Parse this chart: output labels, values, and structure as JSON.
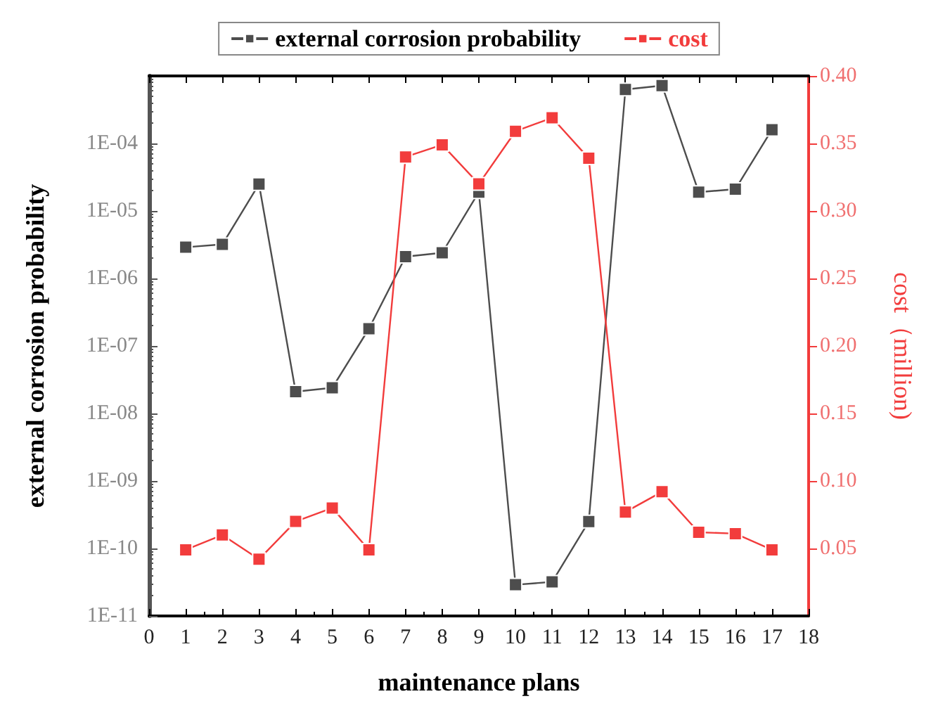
{
  "chart_data": {
    "type": "line",
    "xlabel": "maintenance plans",
    "ylabel": "external corrosion probability",
    "y2label": "cost（million)",
    "x": [
      1,
      2,
      3,
      4,
      5,
      6,
      7,
      8,
      9,
      10,
      11,
      12,
      13,
      14,
      15,
      16,
      17
    ],
    "series": [
      {
        "name": "external corrosion probability",
        "color": "#4d4d4d",
        "values": [
          2.9e-06,
          3.2e-06,
          2.5e-05,
          2.1e-08,
          2.4e-08,
          1.8e-07,
          2.1e-06,
          2.4e-06,
          1.9e-05,
          2.9e-11,
          3.2e-11,
          2.5e-10,
          0.00063,
          0.00072,
          1.9e-05,
          2.1e-05,
          0.00016
        ]
      },
      {
        "name": "cost",
        "color": "#f23c3c",
        "axis": "y2",
        "values": [
          0.049,
          0.06,
          0.042,
          0.07,
          0.08,
          0.049,
          0.34,
          0.349,
          0.32,
          0.359,
          0.369,
          0.339,
          0.077,
          0.092,
          0.062,
          0.061,
          0.049
        ]
      }
    ],
    "log": "y",
    "xlim": [
      0,
      18
    ],
    "xticks": [
      0,
      1,
      2,
      3,
      4,
      5,
      6,
      7,
      8,
      9,
      10,
      11,
      12,
      13,
      14,
      15,
      16,
      17,
      18
    ],
    "ylim": [
      1e-11,
      0.001
    ],
    "yticks": [
      {
        "value": 1e-11,
        "label": "1E-11"
      },
      {
        "value": 1e-10,
        "label": "1E-10"
      },
      {
        "value": 1e-09,
        "label": "1E-09"
      },
      {
        "value": 1e-08,
        "label": "1E-08"
      },
      {
        "value": 1e-07,
        "label": "1E-07"
      },
      {
        "value": 1e-06,
        "label": "1E-06"
      },
      {
        "value": 1e-05,
        "label": "1E-05"
      },
      {
        "value": 0.0001,
        "label": "1E-04"
      }
    ],
    "y2lim": [
      0,
      0.4
    ],
    "y2ticks": [
      0.05,
      {
        "value": 0.1,
        "label": "0.10"
      },
      0.15,
      {
        "value": 0.2,
        "label": "0.20"
      },
      0.25,
      {
        "value": 0.3,
        "label": "0.30"
      },
      0.35,
      {
        "value": 0.4,
        "label": "0.40"
      }
    ],
    "grid": false,
    "legend": "top",
    "marker": "square",
    "line_style": "solid"
  }
}
